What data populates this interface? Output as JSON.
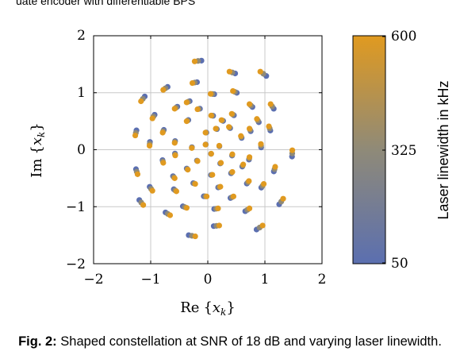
{
  "top_fragment": "uate encoder with differentiable BPS",
  "caption": {
    "label": "Fig. 2:",
    "text": "Shaped constellation at SNR of 18 dB and varying laser linewidth."
  },
  "colors": {
    "low": "#5b6fb0",
    "mid": "#8f8a78",
    "high": "#e09a20",
    "grid": "#c8c8c8",
    "axis": "#000000"
  },
  "chart_data": {
    "type": "scatter",
    "xlabel": "Re{x_k}",
    "ylabel": "Im{x_k}",
    "xlim": [
      -2,
      2
    ],
    "ylim": [
      -2,
      2
    ],
    "xticks": [
      "−2",
      "−1",
      "0",
      "1",
      "2"
    ],
    "yticks": [
      "−2",
      "−1",
      "0",
      "1",
      "2"
    ],
    "grid": true,
    "colorbar": {
      "label": "Laser linewidth in kHz",
      "min": 50,
      "max": 600,
      "ticks": [
        "600",
        "325",
        "50"
      ]
    },
    "points": [
      [
        -0.23,
        1.55
      ],
      [
        0.38,
        1.37
      ],
      [
        0.92,
        1.37
      ],
      [
        -0.78,
        1.05
      ],
      [
        -0.27,
        1.17
      ],
      [
        0.05,
        0.98
      ],
      [
        0.44,
        1.03
      ],
      [
        -1.17,
        0.85
      ],
      [
        -0.37,
        0.83
      ],
      [
        -0.58,
        0.72
      ],
      [
        -0.18,
        0.71
      ],
      [
        0.73,
        0.8
      ],
      [
        1.1,
        0.8
      ],
      [
        0.42,
        0.63
      ],
      [
        0.06,
        0.6
      ],
      [
        -0.97,
        0.55
      ],
      [
        -0.79,
        0.3
      ],
      [
        -0.37,
        0.5
      ],
      [
        0.24,
        0.52
      ],
      [
        0.86,
        0.54
      ],
      [
        -1.27,
        0.25
      ],
      [
        -0.04,
        0.3
      ],
      [
        0.37,
        0.4
      ],
      [
        0.14,
        0.37
      ],
      [
        -0.58,
        0.12
      ],
      [
        0.58,
        0.24
      ],
      [
        0.73,
        0.37
      ],
      [
        1.07,
        0.41
      ],
      [
        -1.02,
        0.07
      ],
      [
        -0.28,
        0.03
      ],
      [
        -0.04,
        0.09
      ],
      [
        0.2,
        0.07
      ],
      [
        0.93,
        0.1
      ],
      [
        1.48,
        -0.01
      ],
      [
        -0.57,
        -0.1
      ],
      [
        0.06,
        -0.07
      ],
      [
        0.43,
        -0.08
      ],
      [
        0.73,
        -0.13
      ],
      [
        -0.18,
        -0.2
      ],
      [
        0.23,
        -0.23
      ],
      [
        -0.78,
        -0.23
      ],
      [
        -0.35,
        -0.35
      ],
      [
        0.43,
        -0.39
      ],
      [
        0.62,
        -0.26
      ],
      [
        1.18,
        -0.3
      ],
      [
        -1.23,
        -0.43
      ],
      [
        0.08,
        -0.44
      ],
      [
        -0.58,
        -0.5
      ],
      [
        0.72,
        -0.55
      ],
      [
        -0.22,
        -0.6
      ],
      [
        0.22,
        -0.65
      ],
      [
        0.98,
        -0.6
      ],
      [
        -0.97,
        -0.72
      ],
      [
        -0.55,
        -0.73
      ],
      [
        0.45,
        -0.82
      ],
      [
        -0.02,
        -0.82
      ],
      [
        -1.13,
        -0.97
      ],
      [
        -0.37,
        -1.02
      ],
      [
        0.18,
        -1.03
      ],
      [
        0.73,
        -1.03
      ],
      [
        1.32,
        -0.86
      ],
      [
        -0.66,
        -1.15
      ],
      [
        0.96,
        -1.33
      ],
      [
        0.2,
        -1.33
      ],
      [
        -0.22,
        -1.52
      ]
    ]
  }
}
